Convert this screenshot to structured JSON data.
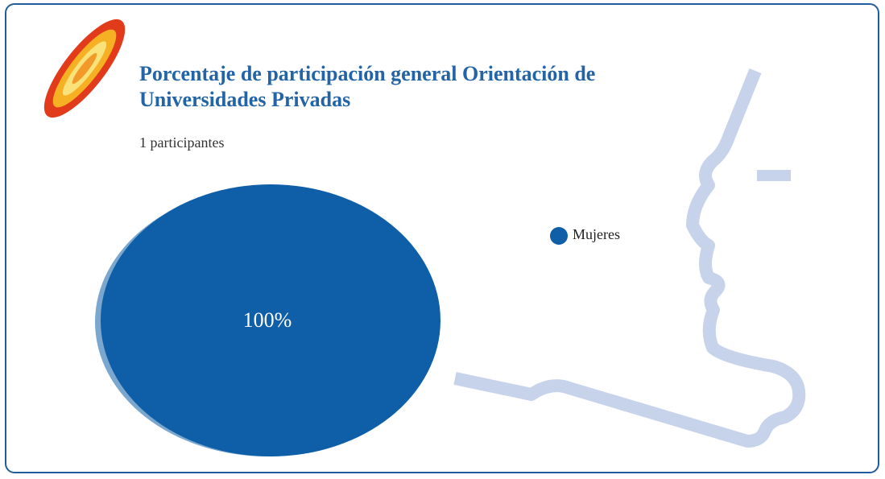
{
  "chart_data": {
    "type": "pie",
    "title": "Porcentaje de participación general Orientación de Universidades Privadas",
    "subtitle": "1 participantes",
    "categories": [
      "Mujeres"
    ],
    "values": [
      100
    ],
    "value_labels": [
      "100%"
    ],
    "colors": [
      "#0e5ea8"
    ]
  }
}
